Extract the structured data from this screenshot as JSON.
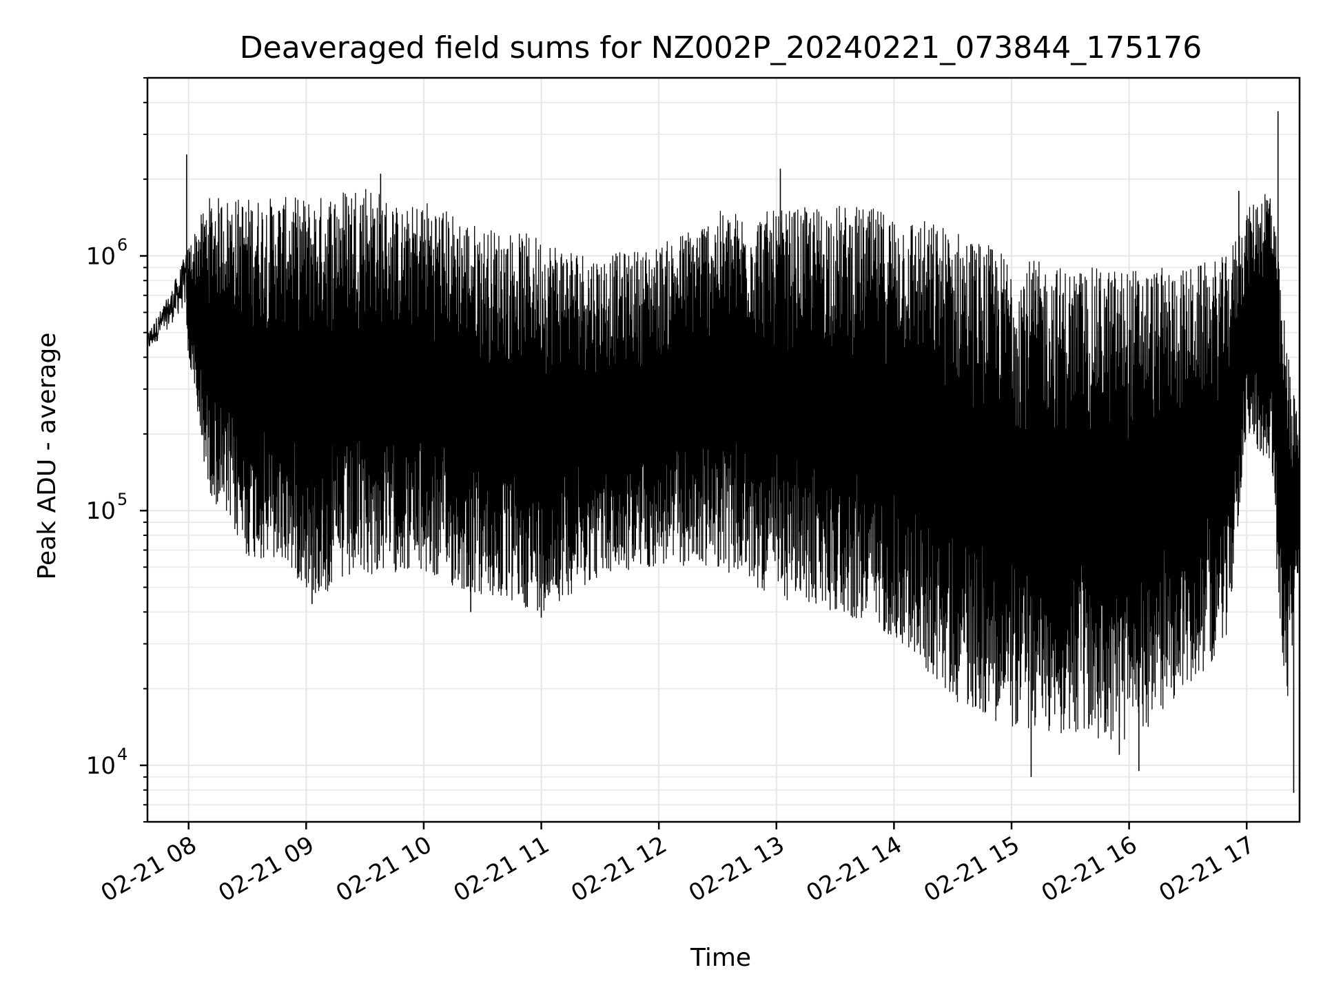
{
  "chart_data": {
    "type": "line",
    "title": "Deaveraged field sums for NZ002P_20240221_073844_175176",
    "xlabel": "Time",
    "ylabel": "Peak ADU - average",
    "yscale": "log",
    "xlim": [
      "2024-02-21 07:39",
      "2024-02-21 17:27"
    ],
    "ylim": [
      6000,
      5000000
    ],
    "grid": true,
    "line_color": "#000000",
    "x_ticks": [
      {
        "value": "2024-02-21 08:00",
        "label": "02-21 08"
      },
      {
        "value": "2024-02-21 09:00",
        "label": "02-21 09"
      },
      {
        "value": "2024-02-21 10:00",
        "label": "02-21 10"
      },
      {
        "value": "2024-02-21 11:00",
        "label": "02-21 11"
      },
      {
        "value": "2024-02-21 12:00",
        "label": "02-21 12"
      },
      {
        "value": "2024-02-21 13:00",
        "label": "02-21 13"
      },
      {
        "value": "2024-02-21 14:00",
        "label": "02-21 14"
      },
      {
        "value": "2024-02-21 15:00",
        "label": "02-21 15"
      },
      {
        "value": "2024-02-21 16:00",
        "label": "02-21 16"
      },
      {
        "value": "2024-02-21 17:00",
        "label": "02-21 17"
      }
    ],
    "y_ticks": [
      {
        "value": 10000,
        "label": "10",
        "exp": "4"
      },
      {
        "value": 100000,
        "label": "10",
        "exp": "5"
      },
      {
        "value": 1000000,
        "label": "10",
        "exp": "6"
      }
    ],
    "envelope": [
      {
        "x": "2024-02-21 07:39",
        "low": 380000,
        "high": 500000
      },
      {
        "x": "2024-02-21 07:50",
        "low": 450000,
        "high": 700000
      },
      {
        "x": "2024-02-21 07:58",
        "low": 500000,
        "high": 1000000
      },
      {
        "x": "2024-02-21 08:10",
        "low": 120000,
        "high": 1700000
      },
      {
        "x": "2024-02-21 08:30",
        "low": 65000,
        "high": 1700000
      },
      {
        "x": "2024-02-21 08:50",
        "low": 60000,
        "high": 1700000
      },
      {
        "x": "2024-02-21 09:05",
        "low": 45000,
        "high": 1700000
      },
      {
        "x": "2024-02-21 09:30",
        "low": 55000,
        "high": 2000000
      },
      {
        "x": "2024-02-21 09:50",
        "low": 58000,
        "high": 1500000
      },
      {
        "x": "2024-02-21 10:00",
        "low": 55000,
        "high": 1700000
      },
      {
        "x": "2024-02-21 10:30",
        "low": 45000,
        "high": 1300000
      },
      {
        "x": "2024-02-21 11:00",
        "low": 40000,
        "high": 1200000
      },
      {
        "x": "2024-02-21 11:30",
        "low": 55000,
        "high": 1000000
      },
      {
        "x": "2024-02-21 12:00",
        "low": 60000,
        "high": 1100000
      },
      {
        "x": "2024-02-21 12:30",
        "low": 60000,
        "high": 1500000
      },
      {
        "x": "2024-02-21 13:00",
        "low": 45000,
        "high": 1500000
      },
      {
        "x": "2024-02-21 13:30",
        "low": 40000,
        "high": 1600000
      },
      {
        "x": "2024-02-21 14:00",
        "low": 32000,
        "high": 1500000
      },
      {
        "x": "2024-02-21 14:30",
        "low": 18000,
        "high": 1300000
      },
      {
        "x": "2024-02-21 15:00",
        "low": 14000,
        "high": 1000000
      },
      {
        "x": "2024-02-21 15:30",
        "low": 13000,
        "high": 900000
      },
      {
        "x": "2024-02-21 16:00",
        "low": 12000,
        "high": 900000
      },
      {
        "x": "2024-02-21 16:30",
        "low": 20000,
        "high": 900000
      },
      {
        "x": "2024-02-21 16:50",
        "low": 30000,
        "high": 1000000
      },
      {
        "x": "2024-02-21 17:00",
        "low": 200000,
        "high": 1500000
      },
      {
        "x": "2024-02-21 17:12",
        "low": 150000,
        "high": 2000000
      },
      {
        "x": "2024-02-21 17:20",
        "low": 15000,
        "high": 500000
      },
      {
        "x": "2024-02-21 17:27",
        "low": 60000,
        "high": 200000
      }
    ],
    "spikes": [
      {
        "x": "2024-02-21 07:59",
        "y": 2500000
      },
      {
        "x": "2024-02-21 09:38",
        "y": 2100000
      },
      {
        "x": "2024-02-21 13:02",
        "y": 2200000
      },
      {
        "x": "2024-02-21 16:56",
        "y": 1800000
      },
      {
        "x": "2024-02-21 17:16",
        "y": 3700000
      },
      {
        "x": "2024-02-21 17:24",
        "y": 7800
      },
      {
        "x": "2024-02-21 15:10",
        "y": 9000
      },
      {
        "x": "2024-02-21 16:05",
        "y": 9500
      },
      {
        "x": "2024-02-21 15:55",
        "y": 11000
      },
      {
        "x": "2024-02-21 09:03",
        "y": 43000
      },
      {
        "x": "2024-02-21 10:24",
        "y": 40000
      },
      {
        "x": "2024-02-21 11:00",
        "y": 38000
      }
    ]
  }
}
